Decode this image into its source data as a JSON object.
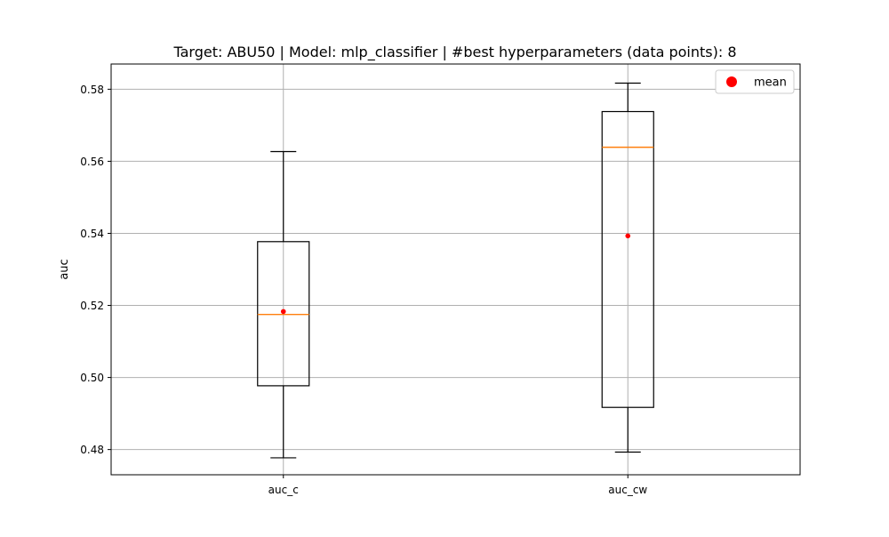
{
  "chart_data": {
    "type": "box",
    "title": "Target: ABU50 | Model: mlp_classifier | #best hyperparameters (data points): 8",
    "xlabel": "",
    "ylabel": "auc",
    "categories": [
      "auc_c",
      "auc_cw"
    ],
    "ylim": [
      0.473,
      0.587
    ],
    "yticks": [
      0.48,
      0.5,
      0.52,
      0.54,
      0.56,
      0.58
    ],
    "ytick_labels": [
      "0.48",
      "0.50",
      "0.52",
      "0.54",
      "0.56",
      "0.58"
    ],
    "grid": true,
    "legend": {
      "position": "top-right",
      "entries": [
        {
          "label": "mean",
          "color": "#ff0000",
          "marker": "circle"
        }
      ]
    },
    "boxes": [
      {
        "category": "auc_c",
        "whisker_low": 0.4777,
        "q1": 0.4977,
        "median": 0.5175,
        "q3": 0.5377,
        "whisker_high": 0.5627,
        "mean": 0.5183
      },
      {
        "category": "auc_cw",
        "whisker_low": 0.4793,
        "q1": 0.4917,
        "median": 0.5639,
        "q3": 0.5738,
        "whisker_high": 0.5817,
        "mean": 0.5393
      }
    ],
    "colors": {
      "box": "#000000",
      "median": "#ff7f0e",
      "mean": "#ff0000",
      "grid": "#b0b0b0"
    }
  }
}
